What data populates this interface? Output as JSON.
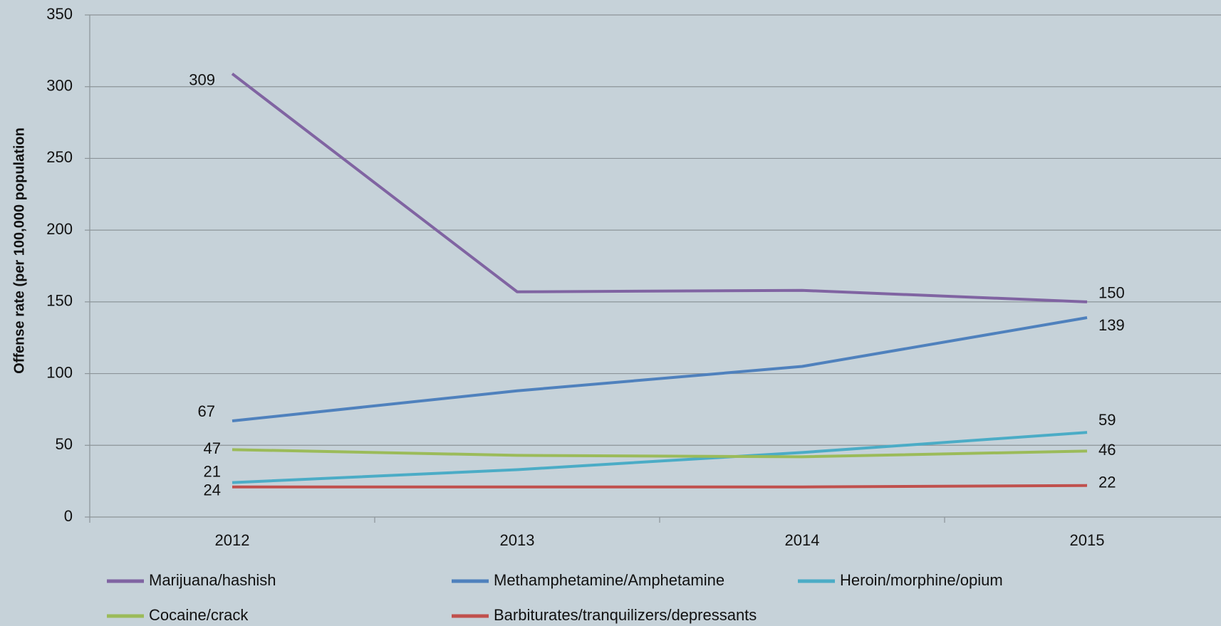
{
  "chart_data": {
    "type": "line",
    "y_label": "Offense rate  (per 100,000 population",
    "categories": [
      "2012",
      "2013",
      "2014",
      "2015"
    ],
    "series": [
      {
        "name": "Marijuana/hashish",
        "color": "#8064a2",
        "values": [
          309,
          157,
          158,
          150
        ]
      },
      {
        "name": "Methamphetamine/Amphetamine",
        "color": "#4f81bd",
        "values": [
          67,
          88,
          105,
          139
        ]
      },
      {
        "name": "Heroin/morphine/opium",
        "color": "#4bacc6",
        "values": [
          24,
          33,
          45,
          59
        ]
      },
      {
        "name": "Cocaine/crack",
        "color": "#9bbb59",
        "values": [
          47,
          43,
          42,
          46
        ]
      },
      {
        "name": "Barbiturates/tranquilizers/depressants",
        "color": "#c0504d",
        "values": [
          21,
          21,
          21,
          22
        ]
      }
    ],
    "ylim": [
      0,
      350
    ],
    "yticks": [
      0,
      50,
      100,
      150,
      200,
      250,
      300,
      350
    ],
    "grid": true,
    "legend": "bottom"
  }
}
